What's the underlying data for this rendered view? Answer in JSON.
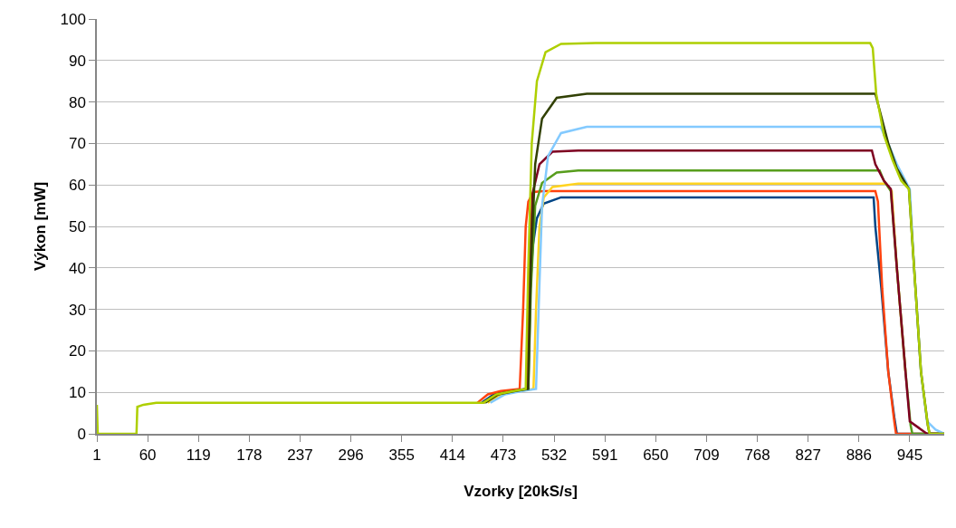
{
  "chart_data": {
    "type": "line",
    "xlabel": "Vzorky [20kS/s]",
    "ylabel": "Výkon [mW]",
    "xlim": [
      1,
      985
    ],
    "xticks": [
      1,
      60,
      119,
      178,
      237,
      296,
      355,
      414,
      473,
      532,
      591,
      650,
      709,
      768,
      827,
      886,
      945
    ],
    "ylim": [
      0,
      100
    ],
    "yticks": [
      0,
      10,
      20,
      30,
      40,
      50,
      60,
      70,
      80,
      90,
      100
    ],
    "grid": "y",
    "legend": false,
    "marker": "none",
    "line_style": "solid",
    "series": [
      {
        "color": "#004586",
        "x": [
          448,
          462,
          480,
          500,
          503,
          507,
          512,
          520,
          540,
          903,
          905,
          912,
          920,
          927,
          930,
          985
        ],
        "values": [
          7.5,
          9.5,
          10.3,
          10.8,
          30,
          45,
          52,
          55.5,
          57,
          57,
          50,
          35,
          15,
          4,
          0,
          0
        ]
      },
      {
        "color": "#ff420e",
        "x": [
          443,
          455,
          470,
          492,
          496,
          499,
          502,
          508,
          520,
          905,
          908,
          913,
          920,
          927,
          929,
          985
        ],
        "values": [
          7.5,
          9.5,
          10.3,
          10.8,
          30,
          50,
          56,
          58.3,
          58.5,
          58.5,
          56,
          35,
          15,
          3,
          0,
          0
        ]
      },
      {
        "color": "#ffd320",
        "x": [
          455,
          470,
          490,
          508,
          511,
          515,
          520,
          530,
          560,
          917,
          924,
          930,
          940
        ],
        "values": [
          7.5,
          9.5,
          10.3,
          10.8,
          30,
          50,
          57,
          59.5,
          60.3,
          60.3,
          58.5,
          40,
          15
        ]
      },
      {
        "color": "#579d1c",
        "x": [
          450,
          465,
          485,
          502,
          505,
          510,
          518,
          535,
          560,
          910,
          915,
          923,
          930,
          940,
          946,
          948,
          985
        ],
        "values": [
          7.5,
          9.5,
          10.3,
          10.8,
          35,
          55,
          60.5,
          63,
          63.5,
          63.5,
          61,
          58.5,
          40,
          15,
          2,
          0,
          0
        ]
      },
      {
        "color": "#7e0021",
        "x": [
          450,
          465,
          485,
          500,
          503,
          507,
          515,
          530,
          560,
          901,
          905,
          915,
          923,
          930,
          940,
          945,
          955,
          965,
          985
        ],
        "values": [
          7.5,
          9.5,
          10.3,
          10.8,
          40,
          58,
          65,
          68,
          68.3,
          68.3,
          65,
          61,
          59,
          40,
          15,
          3,
          1.5,
          0,
          0
        ]
      },
      {
        "color": "#83caff",
        "x": [
          458,
          475,
          495,
          511,
          514,
          518,
          525,
          540,
          570,
          911,
          920,
          930,
          945,
          950,
          958,
          965,
          975,
          985
        ],
        "values": [
          7.5,
          9.5,
          10.3,
          10.8,
          30,
          55,
          67,
          72.5,
          74,
          74,
          70,
          65,
          59,
          40,
          15,
          3,
          1,
          0
        ]
      },
      {
        "color": "#314004",
        "x": [
          452,
          467,
          487,
          502,
          505,
          510,
          518,
          535,
          570,
          905,
          910,
          920,
          930,
          944,
          950,
          958,
          966,
          968,
          985
        ],
        "values": [
          7.5,
          9.5,
          10.3,
          10.8,
          40,
          65,
          76,
          81,
          82,
          82,
          78,
          70,
          64,
          59,
          40,
          15,
          2,
          0,
          0
        ]
      },
      {
        "color": "#aecf00",
        "x": [
          1,
          2,
          47,
          48,
          55,
          70,
          450,
          465,
          485,
          499,
          502,
          506,
          512,
          522,
          540,
          580,
          899,
          902,
          906,
          915,
          925,
          935,
          944,
          950,
          958,
          966,
          968,
          985
        ],
        "values": [
          7,
          0,
          0,
          6.5,
          7,
          7.5,
          7.5,
          9.5,
          10.3,
          10.8,
          40,
          70,
          85,
          92,
          94,
          94.2,
          94.2,
          93,
          82,
          72,
          66,
          61,
          59,
          40,
          15,
          2,
          0,
          0
        ]
      }
    ]
  }
}
